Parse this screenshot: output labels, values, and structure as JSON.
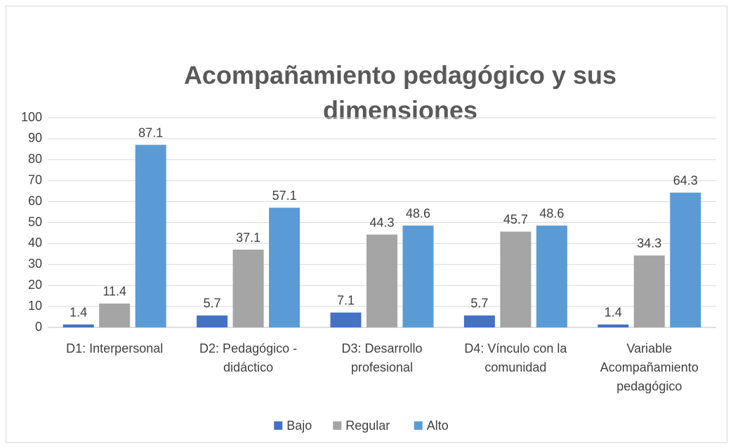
{
  "chart_data": {
    "type": "bar",
    "title": [
      "Acompañamiento pedagógico y sus",
      "dimensiones"
    ],
    "categories": [
      [
        "D1: Interpersonal"
      ],
      [
        "D2: Pedagógico -",
        "didáctico"
      ],
      [
        "D3: Desarrollo",
        "profesional"
      ],
      [
        "D4: Vínculo con la",
        "comunidad"
      ],
      [
        "Variable",
        "Acompañamiento",
        "pedagógico"
      ]
    ],
    "series": [
      {
        "name": "Bajo",
        "color": "#4472c4",
        "values": [
          1.4,
          5.7,
          7.1,
          5.7,
          1.4
        ]
      },
      {
        "name": "Regular",
        "color": "#a5a5a5",
        "values": [
          11.4,
          37.1,
          44.3,
          45.7,
          34.3
        ]
      },
      {
        "name": "Alto",
        "color": "#5b9bd5",
        "values": [
          87.1,
          57.1,
          48.6,
          48.6,
          64.3
        ]
      }
    ],
    "ylim": [
      0,
      100
    ],
    "yticks": [
      0,
      10,
      20,
      30,
      40,
      50,
      60,
      70,
      80,
      90,
      100
    ],
    "grid": true,
    "legend": "bottom"
  }
}
